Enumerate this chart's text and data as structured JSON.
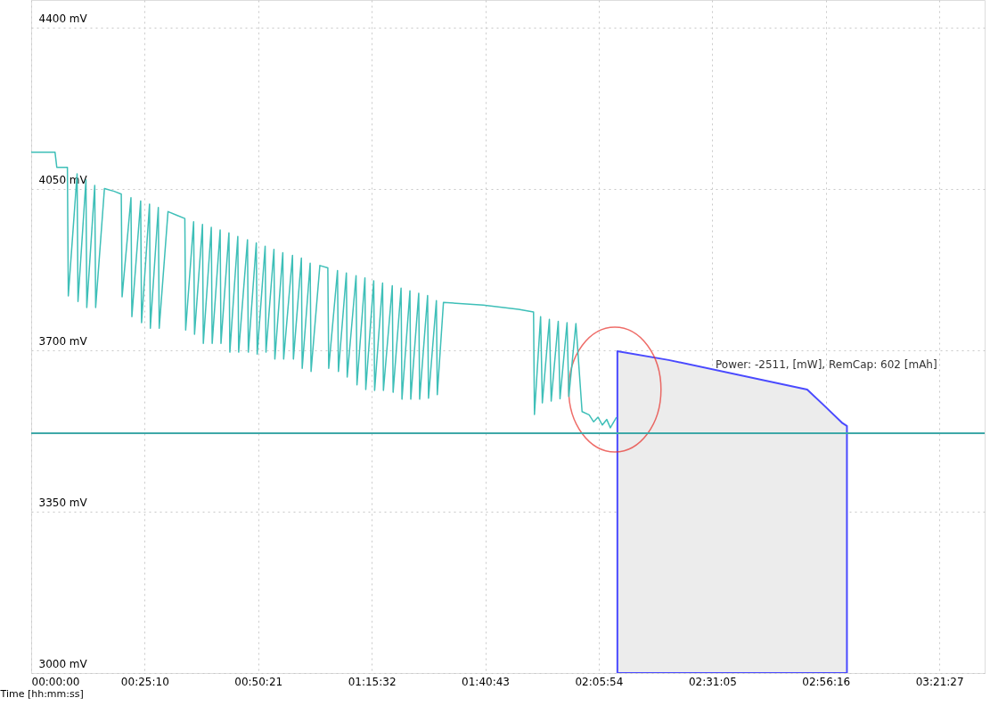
{
  "chart_data": {
    "type": "line",
    "xlabel": "Time [hh:mm:ss]",
    "xlim": [
      0,
      12690
    ],
    "xticks": [
      {
        "value": 0,
        "label": "00:00:00"
      },
      {
        "value": 1510,
        "label": "00:25:10"
      },
      {
        "value": 3021,
        "label": "00:50:21"
      },
      {
        "value": 4532,
        "label": "01:15:32"
      },
      {
        "value": 6043,
        "label": "01:40:43"
      },
      {
        "value": 7554,
        "label": "02:05:54"
      },
      {
        "value": 9065,
        "label": "02:31:05"
      },
      {
        "value": 10576,
        "label": "02:56:16"
      },
      {
        "value": 12087,
        "label": "03:21:27"
      }
    ],
    "ylim": [
      3000,
      4460
    ],
    "yticks": [
      {
        "value": 3000,
        "label": "3000 mV"
      },
      {
        "value": 3350,
        "label": "3350 mV"
      },
      {
        "value": 3700,
        "label": "3700 mV"
      },
      {
        "value": 4050,
        "label": "4050 mV"
      },
      {
        "value": 4400,
        "label": "4400 mV"
      }
    ],
    "grid": true,
    "series": [
      {
        "type": "line",
        "color": "#3ebfb8",
        "x": [
          0,
          317,
          341,
          482,
          494,
          611,
          623,
          729,
          740,
          846,
          858,
          975,
          1105,
          1199,
          1210,
          1328,
          1340,
          1457,
          1469,
          1575,
          1586,
          1692,
          1704,
          1821,
          1939,
          2045,
          2056,
          2162,
          2174,
          2280,
          2291,
          2397,
          2409,
          2515,
          2526,
          2632,
          2644,
          2750,
          2761,
          2879,
          2890,
          2996,
          3008,
          3114,
          3125,
          3231,
          3243,
          3349,
          3360,
          3478,
          3490,
          3596,
          3607,
          3713,
          3725,
          3842,
          3948,
          3960,
          4077,
          4089,
          4195,
          4206,
          4324,
          4336,
          4442,
          4453,
          4559,
          4571,
          4677,
          4688,
          4806,
          4817,
          4923,
          4935,
          5041,
          5052,
          5158,
          5170,
          5276,
          5288,
          5393,
          5405,
          5487,
          6016,
          6486,
          6686,
          6698,
          6780,
          6803,
          6897,
          6921,
          7015,
          7038,
          7132,
          7156,
          7250,
          7332,
          7426,
          7485,
          7544,
          7602,
          7661,
          7708,
          7755,
          7790
        ],
        "values": [
          4130,
          4130,
          4097,
          4097,
          3818,
          4083,
          3806,
          4070,
          3793,
          4058,
          3793,
          4051,
          4045,
          4039,
          3816,
          4031,
          3773,
          4024,
          3760,
          4017,
          3748,
          4010,
          3748,
          4001,
          3993,
          3986,
          3744,
          3979,
          3735,
          3973,
          3715,
          3967,
          3715,
          3961,
          3715,
          3955,
          3696,
          3947,
          3696,
          3940,
          3696,
          3933,
          3692,
          3926,
          3696,
          3919,
          3681,
          3912,
          3681,
          3906,
          3681,
          3900,
          3661,
          3889,
          3654,
          3884,
          3879,
          3661,
          3873,
          3654,
          3868,
          3642,
          3862,
          3625,
          3857,
          3615,
          3851,
          3613,
          3846,
          3613,
          3840,
          3609,
          3835,
          3594,
          3829,
          3594,
          3824,
          3594,
          3819,
          3596,
          3808,
          3604,
          3804,
          3798,
          3789,
          3783,
          3561,
          3773,
          3586,
          3767,
          3590,
          3763,
          3595,
          3760,
          3600,
          3758,
          3567,
          3560,
          3545,
          3555,
          3538,
          3550,
          3532,
          3545,
          3555
        ]
      },
      {
        "type": "area",
        "color": "#4a4aff",
        "x": [
          7802,
          8484,
          10328,
          10575,
          10798,
          10857
        ],
        "values": [
          3698,
          3679,
          3615,
          3577,
          3542,
          3536
        ]
      }
    ],
    "ref_lines": [
      {
        "axis": "y",
        "value": 3520,
        "color": "#3ea8a8"
      }
    ],
    "annotations": [
      "Power: -2511, [mW], RemCap: 602 [mAh]"
    ]
  }
}
